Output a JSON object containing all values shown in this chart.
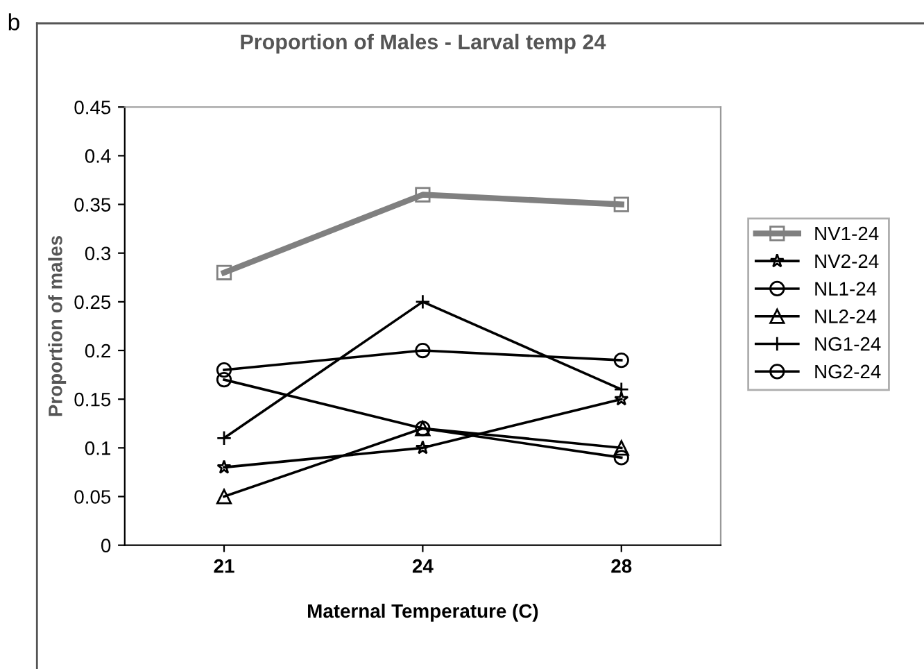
{
  "chart_data": {
    "type": "line",
    "title": "Proportion of Males - Larval temp 24",
    "xlabel": "Maternal Temperature (C)",
    "ylabel": "Proportion of males",
    "categories": [
      "21",
      "24",
      "28"
    ],
    "series": [
      {
        "name": "NV1-24",
        "color": "#808080",
        "marker": "square",
        "values": [
          0.28,
          0.36,
          0.35
        ]
      },
      {
        "name": "NV2-24",
        "color": "#000000",
        "marker": "star",
        "values": [
          0.08,
          0.1,
          0.15
        ]
      },
      {
        "name": "NL1-24",
        "color": "#000000",
        "marker": "circle",
        "values": [
          0.18,
          0.2,
          0.19
        ]
      },
      {
        "name": "NL2-24",
        "color": "#000000",
        "marker": "triangle",
        "values": [
          0.05,
          0.12,
          0.1
        ]
      },
      {
        "name": "NG1-24",
        "color": "#000000",
        "marker": "cross",
        "values": [
          0.11,
          0.25,
          0.16
        ]
      },
      {
        "name": "NG2-24",
        "color": "#000000",
        "marker": "circle",
        "values": [
          0.17,
          0.12,
          0.09
        ]
      }
    ],
    "ylim": [
      0,
      0.45
    ],
    "yticks": [
      0,
      0.05,
      0.1,
      0.15,
      0.2,
      0.25,
      0.3,
      0.35,
      0.4,
      0.45
    ],
    "grid": false,
    "legend": "right",
    "line_style": "solid",
    "annotations": [
      "b"
    ]
  }
}
